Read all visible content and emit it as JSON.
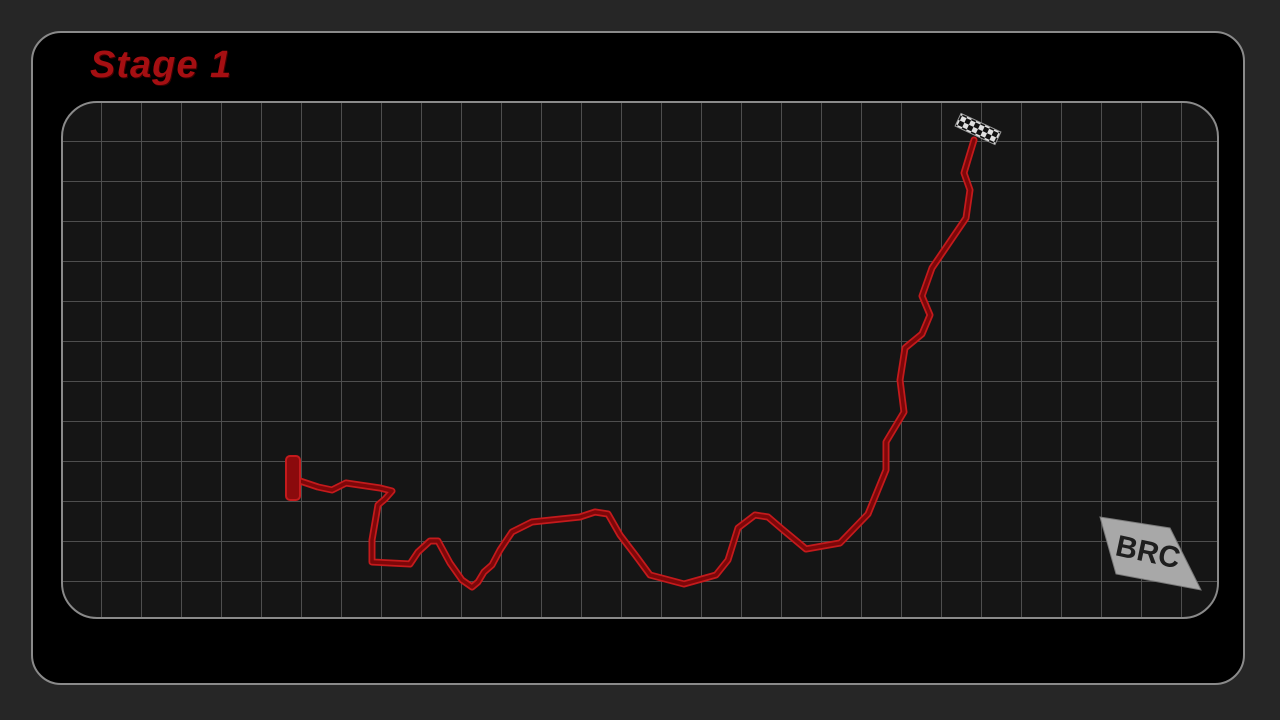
{
  "stage": {
    "title": "Stage 1"
  },
  "map": {
    "grid": true,
    "route_color": "#8b0a0c",
    "route_outline_color": "#c41a1c",
    "start_marker": "start-bar",
    "finish_marker": "checkered-flag"
  },
  "badge": {
    "text": "BRC",
    "background": "#a8a8a8",
    "text_color": "#1e1e1e"
  },
  "colors": {
    "background": "#262626",
    "panel": "#000000",
    "border": "#8a8a8a",
    "accent": "#a50f12"
  }
}
